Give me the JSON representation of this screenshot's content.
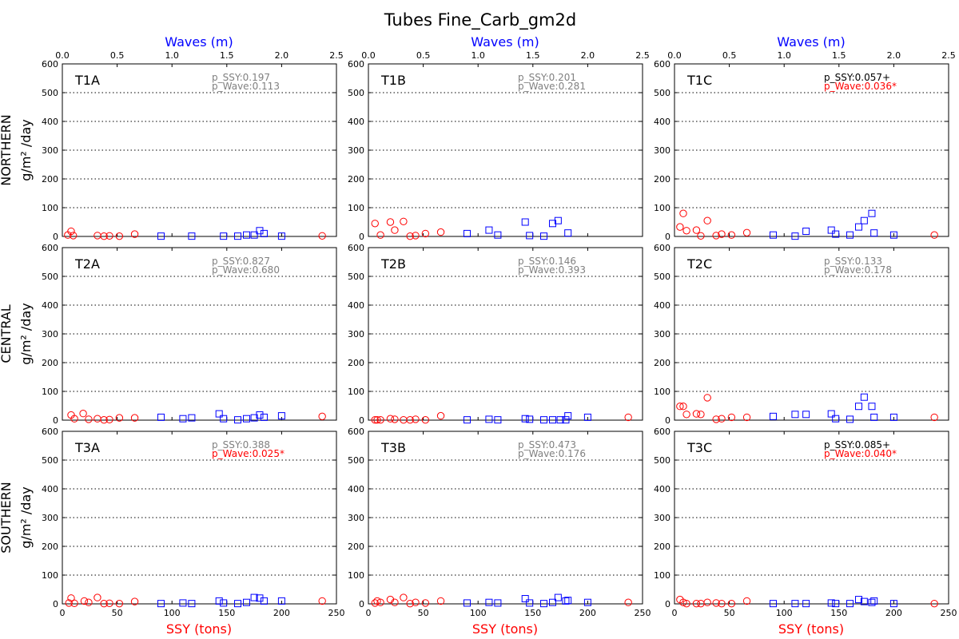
{
  "figure": {
    "title": "Tubes Fine_Carb_gm2d",
    "wave_axis_label": "Waves (m)",
    "ssy_axis_label": "SSY (tons)",
    "row_labels": [
      "NORTHERN",
      "CENTRAL",
      "SOUTHERN"
    ],
    "ylabel": "g/m² /day"
  },
  "colors": {
    "ssy_axis": "#ff0000",
    "wave_axis": "#0000ff",
    "significant": "#ff0000",
    "nonsignificant": "#808080",
    "marginal": "#000000"
  },
  "chart_data": [
    {
      "type": "scatter",
      "panel_label": "T1A",
      "xlim": [
        0,
        250
      ],
      "x2lim": [
        0,
        2.5
      ],
      "ylim": [
        0,
        600
      ],
      "grid": "horizontal dotted",
      "p_ssy": {
        "text": "p_SSY:0.197",
        "style": "nonsignificant"
      },
      "p_wave": {
        "text": "p_Wave:0.113",
        "style": "nonsignificant"
      },
      "ssy_series": {
        "marker": "circle",
        "color": "#ff0000",
        "x": [
          5,
          8,
          10,
          32,
          38,
          43,
          52,
          66,
          237
        ],
        "y": [
          5,
          18,
          3,
          3,
          1,
          2,
          1,
          8,
          2
        ]
      },
      "wave_series": {
        "marker": "square",
        "color": "#0000ff",
        "x": [
          0.9,
          1.18,
          1.47,
          1.6,
          1.68,
          1.75,
          1.8,
          1.84,
          2.0
        ],
        "y": [
          1,
          1,
          1,
          1,
          5,
          5,
          20,
          10,
          1
        ]
      }
    },
    {
      "type": "scatter",
      "panel_label": "T1B",
      "xlim": [
        0,
        250
      ],
      "x2lim": [
        0,
        2.5
      ],
      "ylim": [
        0,
        600
      ],
      "grid": "horizontal dotted",
      "p_ssy": {
        "text": "p_SSY:0.201",
        "style": "nonsignificant"
      },
      "p_wave": {
        "text": "p_Wave:0.281",
        "style": "nonsignificant"
      },
      "ssy_series": {
        "marker": "circle",
        "color": "#ff0000",
        "x": [
          6,
          11,
          20,
          24,
          32,
          38,
          43,
          52,
          66,
          237
        ],
        "y": [
          45,
          5,
          50,
          22,
          52,
          1,
          3,
          10,
          15,
          null
        ]
      },
      "wave_series": {
        "marker": "square",
        "color": "#0000ff",
        "x": [
          0.9,
          1.1,
          1.18,
          1.43,
          1.47,
          1.6,
          1.68,
          1.73,
          1.82
        ],
        "y": [
          10,
          22,
          5,
          50,
          3,
          1,
          45,
          55,
          12
        ]
      }
    },
    {
      "type": "scatter",
      "panel_label": "T1C",
      "xlim": [
        0,
        250
      ],
      "x2lim": [
        0,
        2.5
      ],
      "ylim": [
        0,
        600
      ],
      "grid": "horizontal dotted",
      "p_ssy": {
        "text": "p_SSY:0.057+",
        "style": "marginal"
      },
      "p_wave": {
        "text": "p_Wave:0.036*",
        "style": "significant"
      },
      "ssy_series": {
        "marker": "circle",
        "color": "#ff0000",
        "x": [
          5,
          8,
          11,
          20,
          24,
          30,
          38,
          43,
          52,
          66,
          237
        ],
        "y": [
          33,
          80,
          20,
          22,
          2,
          55,
          3,
          8,
          5,
          13,
          5
        ]
      },
      "wave_series": {
        "marker": "square",
        "color": "#0000ff",
        "x": [
          0.9,
          1.1,
          1.2,
          1.43,
          1.47,
          1.6,
          1.68,
          1.73,
          1.8,
          1.82,
          2.0
        ],
        "y": [
          5,
          1,
          18,
          22,
          8,
          5,
          33,
          55,
          80,
          12,
          5
        ]
      }
    },
    {
      "type": "scatter",
      "panel_label": "T2A",
      "xlim": [
        0,
        250
      ],
      "x2lim": [
        0,
        2.5
      ],
      "ylim": [
        0,
        600
      ],
      "grid": "horizontal dotted",
      "p_ssy": {
        "text": "p_SSY:0.827",
        "style": "nonsignificant"
      },
      "p_wave": {
        "text": "p_Wave:0.680",
        "style": "nonsignificant"
      },
      "ssy_series": {
        "marker": "circle",
        "color": "#ff0000",
        "x": [
          8,
          11,
          19,
          24,
          32,
          38,
          43,
          52,
          66,
          237
        ],
        "y": [
          18,
          5,
          23,
          3,
          5,
          1,
          2,
          8,
          8,
          13
        ]
      },
      "wave_series": {
        "marker": "square",
        "color": "#0000ff",
        "x": [
          0.9,
          1.1,
          1.18,
          1.43,
          1.47,
          1.6,
          1.68,
          1.75,
          1.8,
          1.84,
          2.0
        ],
        "y": [
          10,
          5,
          8,
          22,
          5,
          1,
          5,
          8,
          18,
          10,
          15
        ]
      }
    },
    {
      "type": "scatter",
      "panel_label": "T2B",
      "xlim": [
        0,
        250
      ],
      "x2lim": [
        0,
        2.5
      ],
      "ylim": [
        0,
        600
      ],
      "grid": "horizontal dotted",
      "p_ssy": {
        "text": "p_SSY:0.146",
        "style": "nonsignificant"
      },
      "p_wave": {
        "text": "p_Wave:0.393",
        "style": "nonsignificant"
      },
      "ssy_series": {
        "marker": "circle",
        "color": "#ff0000",
        "x": [
          6,
          8,
          11,
          20,
          24,
          32,
          38,
          43,
          52,
          66,
          237
        ],
        "y": [
          1,
          1,
          1,
          5,
          3,
          1,
          1,
          3,
          1,
          15,
          10
        ]
      },
      "wave_series": {
        "marker": "square",
        "color": "#0000ff",
        "x": [
          0.9,
          1.1,
          1.18,
          1.43,
          1.47,
          1.6,
          1.68,
          1.75,
          1.8,
          1.82,
          2.0
        ],
        "y": [
          1,
          3,
          1,
          5,
          3,
          1,
          1,
          1,
          1,
          15,
          10
        ]
      }
    },
    {
      "type": "scatter",
      "panel_label": "T2C",
      "xlim": [
        0,
        250
      ],
      "x2lim": [
        0,
        2.5
      ],
      "ylim": [
        0,
        600
      ],
      "grid": "horizontal dotted",
      "p_ssy": {
        "text": "p_SSY:0.133",
        "style": "nonsignificant"
      },
      "p_wave": {
        "text": "p_Wave:0.178",
        "style": "nonsignificant"
      },
      "ssy_series": {
        "marker": "circle",
        "color": "#ff0000",
        "x": [
          5,
          8,
          11,
          20,
          24,
          30,
          38,
          43,
          52,
          66,
          237
        ],
        "y": [
          48,
          48,
          20,
          22,
          20,
          78,
          3,
          5,
          10,
          10,
          10
        ]
      },
      "wave_series": {
        "marker": "square",
        "color": "#0000ff",
        "x": [
          0.9,
          1.1,
          1.2,
          1.43,
          1.47,
          1.6,
          1.68,
          1.73,
          1.8,
          1.82,
          2.0
        ],
        "y": [
          13,
          20,
          20,
          22,
          5,
          3,
          48,
          80,
          48,
          10,
          10
        ]
      }
    },
    {
      "type": "scatter",
      "panel_label": "T3A",
      "xlim": [
        0,
        250
      ],
      "x2lim": [
        0,
        2.5
      ],
      "ylim": [
        0,
        600
      ],
      "grid": "horizontal dotted",
      "p_ssy": {
        "text": "p_SSY:0.388",
        "style": "nonsignificant"
      },
      "p_wave": {
        "text": "p_Wave:0.025*",
        "style": "significant"
      },
      "ssy_series": {
        "marker": "circle",
        "color": "#ff0000",
        "x": [
          6,
          8,
          11,
          20,
          24,
          32,
          38,
          43,
          52,
          66,
          237
        ],
        "y": [
          3,
          20,
          2,
          10,
          5,
          22,
          1,
          2,
          1,
          8,
          10
        ]
      },
      "wave_series": {
        "marker": "square",
        "color": "#0000ff",
        "x": [
          0.9,
          1.1,
          1.18,
          1.43,
          1.47,
          1.6,
          1.68,
          1.75,
          1.8,
          1.84,
          2.0
        ],
        "y": [
          1,
          3,
          1,
          10,
          3,
          1,
          5,
          22,
          20,
          10,
          10
        ]
      }
    },
    {
      "type": "scatter",
      "panel_label": "T3B",
      "xlim": [
        0,
        250
      ],
      "x2lim": [
        0,
        2.5
      ],
      "ylim": [
        0,
        600
      ],
      "grid": "horizontal dotted",
      "p_ssy": {
        "text": "p_SSY:0.473",
        "style": "nonsignificant"
      },
      "p_wave": {
        "text": "p_Wave:0.176",
        "style": "nonsignificant"
      },
      "ssy_series": {
        "marker": "circle",
        "color": "#ff0000",
        "x": [
          6,
          8,
          11,
          20,
          24,
          32,
          38,
          43,
          52,
          66,
          237
        ],
        "y": [
          3,
          10,
          5,
          15,
          5,
          22,
          1,
          5,
          3,
          10,
          5
        ]
      },
      "wave_series": {
        "marker": "square",
        "color": "#0000ff",
        "x": [
          0.9,
          1.1,
          1.18,
          1.43,
          1.47,
          1.6,
          1.68,
          1.73,
          1.8,
          1.82,
          2.0
        ],
        "y": [
          3,
          5,
          3,
          18,
          3,
          1,
          5,
          22,
          10,
          12,
          5
        ]
      }
    },
    {
      "type": "scatter",
      "panel_label": "T3C",
      "xlim": [
        0,
        250
      ],
      "x2lim": [
        0,
        2.5
      ],
      "ylim": [
        0,
        600
      ],
      "grid": "horizontal dotted",
      "p_ssy": {
        "text": "p_SSY:0.085+",
        "style": "marginal"
      },
      "p_wave": {
        "text": "p_Wave:0.040*",
        "style": "significant"
      },
      "ssy_series": {
        "marker": "circle",
        "color": "#ff0000",
        "x": [
          5,
          8,
          11,
          20,
          24,
          30,
          38,
          43,
          52,
          66,
          237
        ],
        "y": [
          15,
          5,
          1,
          1,
          1,
          5,
          3,
          1,
          1,
          10,
          1
        ]
      },
      "wave_series": {
        "marker": "square",
        "color": "#0000ff",
        "x": [
          0.9,
          1.1,
          1.2,
          1.43,
          1.47,
          1.6,
          1.68,
          1.73,
          1.8,
          1.82,
          2.0
        ],
        "y": [
          1,
          1,
          1,
          3,
          1,
          1,
          15,
          8,
          5,
          10,
          1
        ]
      }
    }
  ]
}
